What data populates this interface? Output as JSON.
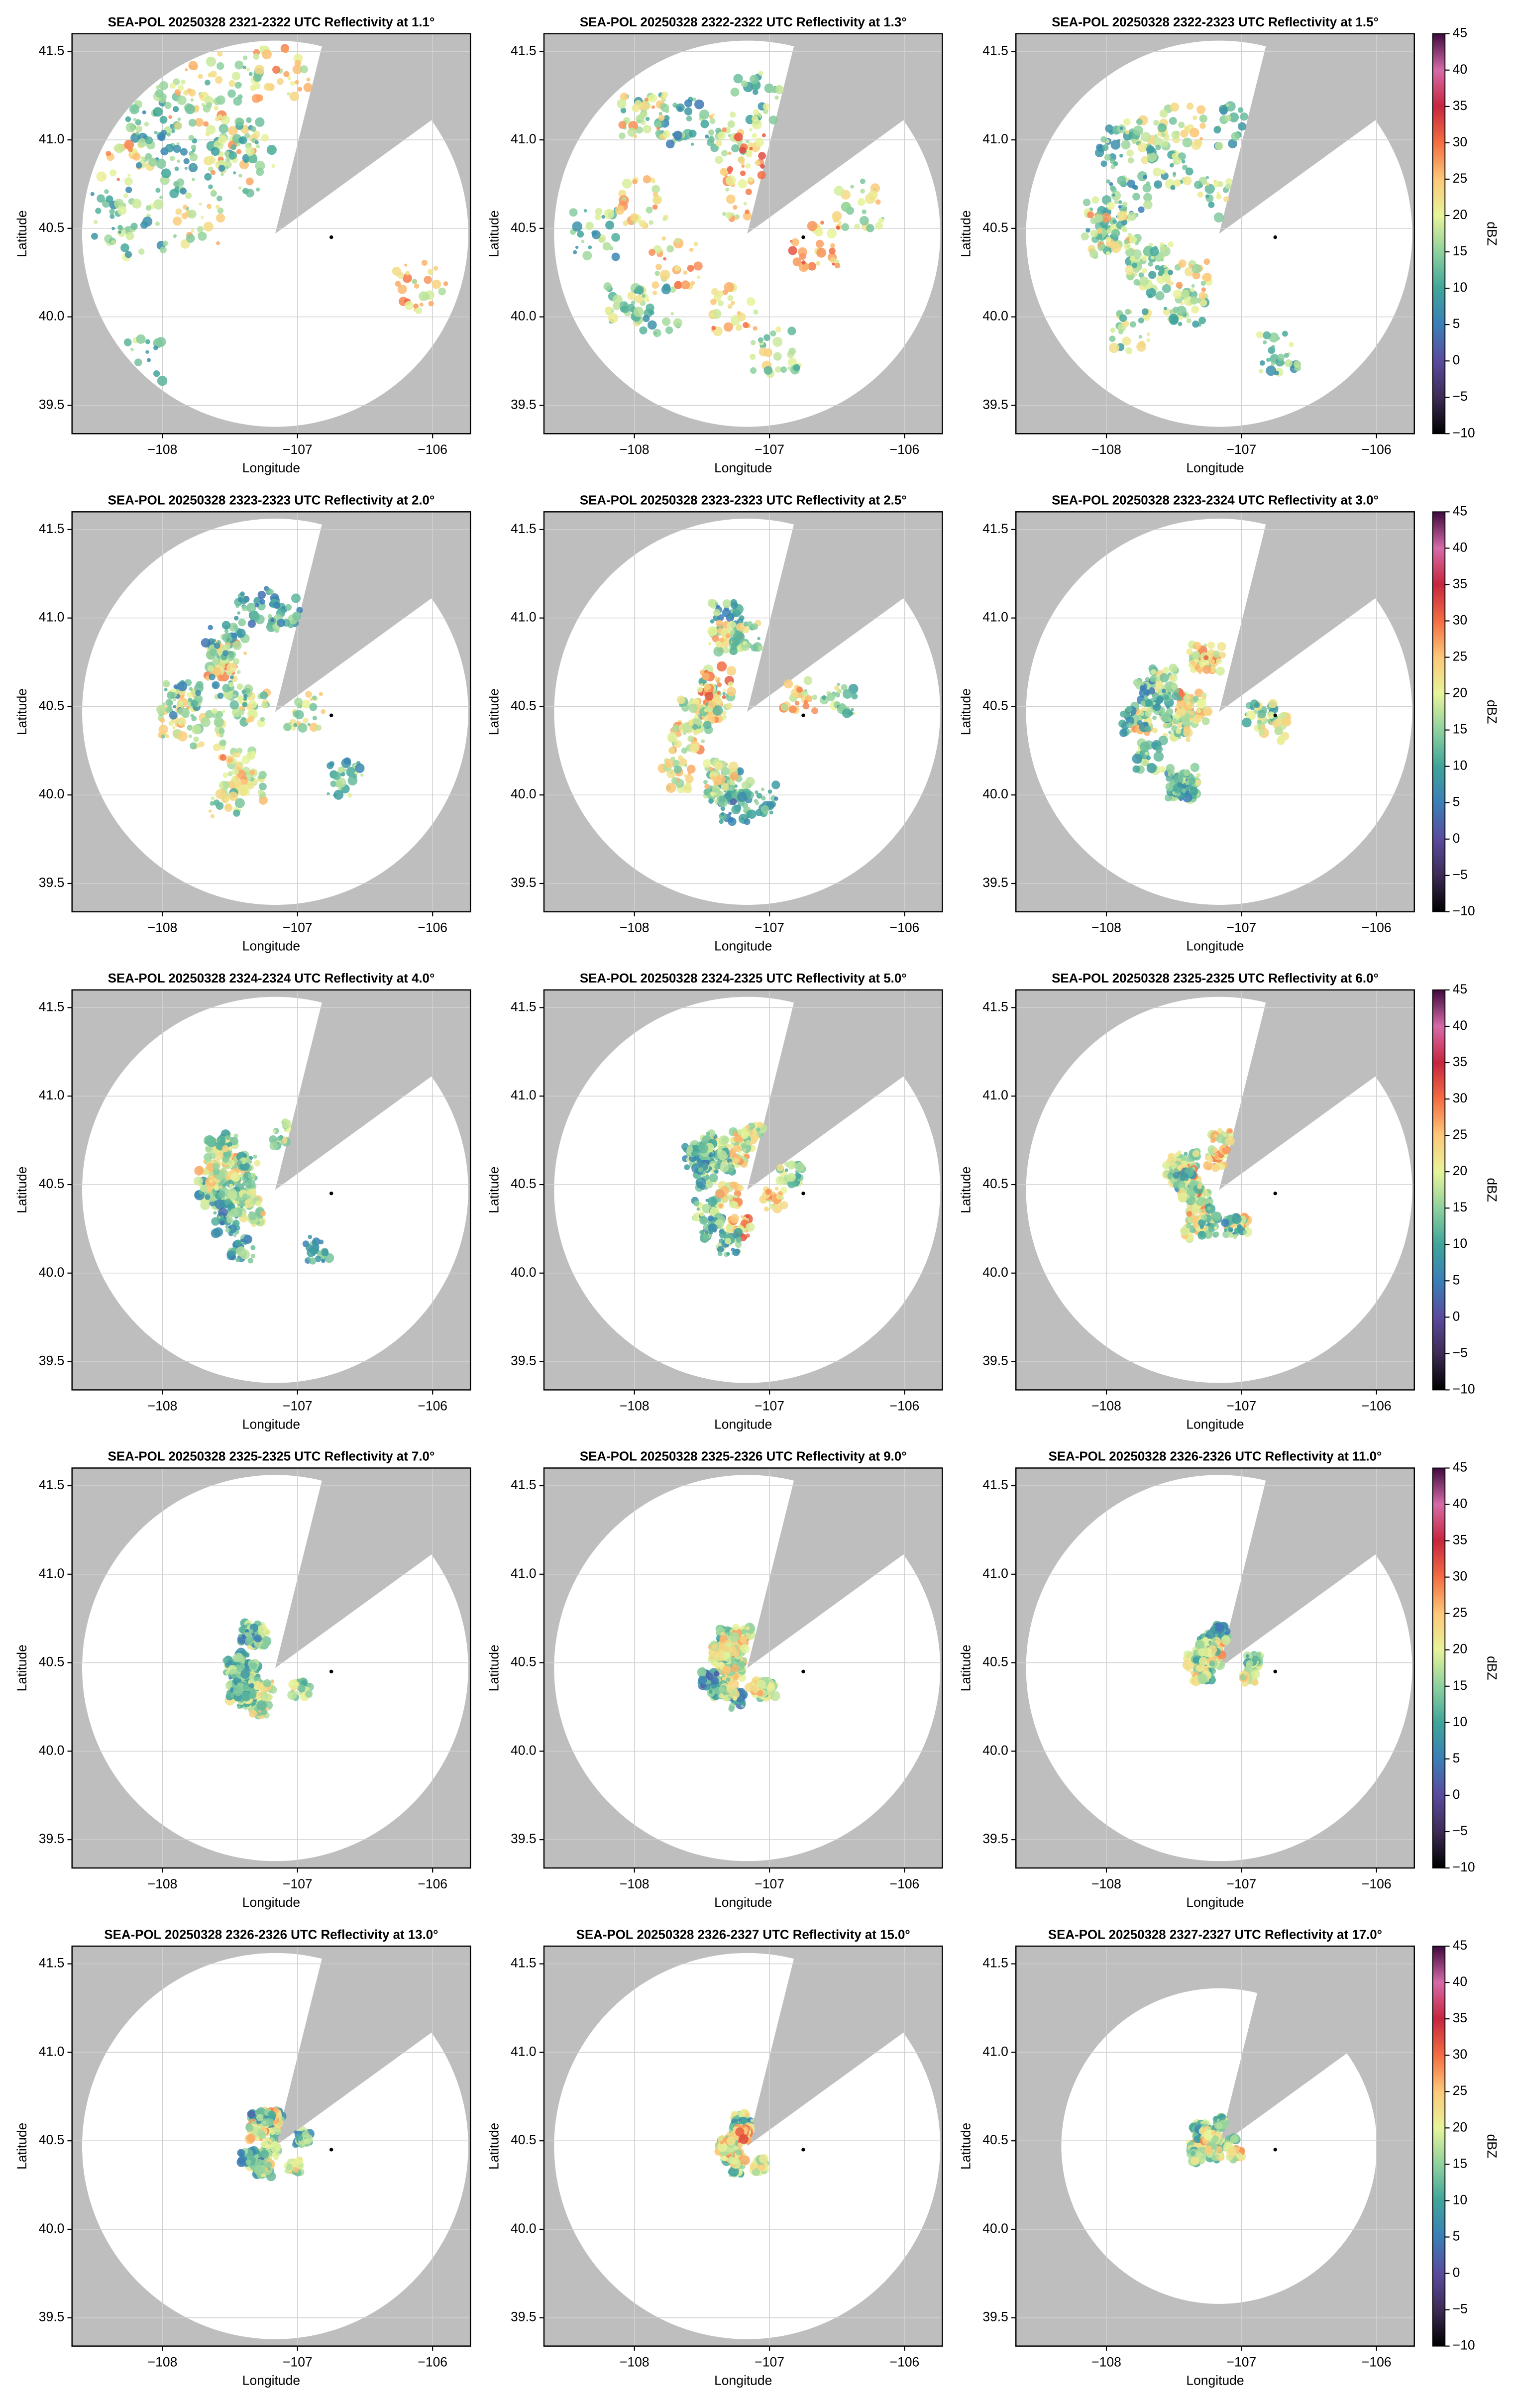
{
  "chart_data": [
    {
      "type": "map",
      "title": "SEA-POL 20250328 2321-2322 UTC Reflectivity at 1.1°",
      "xlabel": "Longitude",
      "ylabel": "Latitude",
      "xlim": [
        -108.67,
        -105.72
      ],
      "ylim": [
        39.34,
        41.6
      ],
      "xticks": [
        {
          "value": -108,
          "label": "−108"
        },
        {
          "value": -107,
          "label": "−107"
        },
        {
          "value": -106,
          "label": "−106"
        }
      ],
      "yticks": [
        39.5,
        {
          "value": 40,
          "label": "40.0"
        },
        40.5,
        {
          "value": 41,
          "label": "41.0"
        },
        41.5
      ],
      "marker": {
        "x": -106.75,
        "y": 40.45
      }
    },
    {
      "type": "map",
      "title": "SEA-POL 20250328 2322-2322 UTC Reflectivity at 1.3°",
      "xlabel": "Longitude",
      "ylabel": "Latitude",
      "xlim": [
        -108.67,
        -105.72
      ],
      "ylim": [
        39.34,
        41.6
      ],
      "xticks": [
        {
          "value": -108,
          "label": "−108"
        },
        {
          "value": -107,
          "label": "−107"
        },
        {
          "value": -106,
          "label": "−106"
        }
      ],
      "yticks": [
        39.5,
        {
          "value": 40,
          "label": "40.0"
        },
        40.5,
        {
          "value": 41,
          "label": "41.0"
        },
        41.5
      ],
      "marker": {
        "x": -106.75,
        "y": 40.45
      }
    },
    {
      "type": "map",
      "title": "SEA-POL 20250328 2322-2323 UTC Reflectivity at 1.5°",
      "xlabel": "Longitude",
      "ylabel": "Latitude",
      "xlim": [
        -108.67,
        -105.72
      ],
      "ylim": [
        39.34,
        41.6
      ],
      "xticks": [
        {
          "value": -108,
          "label": "−108"
        },
        {
          "value": -107,
          "label": "−107"
        },
        {
          "value": -106,
          "label": "−106"
        }
      ],
      "yticks": [
        39.5,
        {
          "value": 40,
          "label": "40.0"
        },
        40.5,
        {
          "value": 41,
          "label": "41.0"
        },
        41.5
      ],
      "marker": {
        "x": -106.75,
        "y": 40.45
      }
    },
    {
      "type": "map",
      "title": "SEA-POL 20250328 2323-2323 UTC Reflectivity at 2.0°",
      "xlabel": "Longitude",
      "ylabel": "Latitude",
      "xlim": [
        -108.67,
        -105.72
      ],
      "ylim": [
        39.34,
        41.6
      ],
      "xticks": [
        {
          "value": -108,
          "label": "−108"
        },
        {
          "value": -107,
          "label": "−107"
        },
        {
          "value": -106,
          "label": "−106"
        }
      ],
      "yticks": [
        39.5,
        {
          "value": 40,
          "label": "40.0"
        },
        40.5,
        {
          "value": 41,
          "label": "41.0"
        },
        41.5
      ],
      "marker": {
        "x": -106.75,
        "y": 40.45
      }
    },
    {
      "type": "map",
      "title": "SEA-POL 20250328 2323-2323 UTC Reflectivity at 2.5°",
      "xlabel": "Longitude",
      "ylabel": "Latitude",
      "xlim": [
        -108.67,
        -105.72
      ],
      "ylim": [
        39.34,
        41.6
      ],
      "xticks": [
        {
          "value": -108,
          "label": "−108"
        },
        {
          "value": -107,
          "label": "−107"
        },
        {
          "value": -106,
          "label": "−106"
        }
      ],
      "yticks": [
        39.5,
        {
          "value": 40,
          "label": "40.0"
        },
        40.5,
        {
          "value": 41,
          "label": "41.0"
        },
        41.5
      ],
      "marker": {
        "x": -106.75,
        "y": 40.45
      }
    },
    {
      "type": "map",
      "title": "SEA-POL 20250328 2323-2324 UTC Reflectivity at 3.0°",
      "xlabel": "Longitude",
      "ylabel": "Latitude",
      "xlim": [
        -108.67,
        -105.72
      ],
      "ylim": [
        39.34,
        41.6
      ],
      "xticks": [
        {
          "value": -108,
          "label": "−108"
        },
        {
          "value": -107,
          "label": "−107"
        },
        {
          "value": -106,
          "label": "−106"
        }
      ],
      "yticks": [
        39.5,
        {
          "value": 40,
          "label": "40.0"
        },
        40.5,
        {
          "value": 41,
          "label": "41.0"
        },
        41.5
      ],
      "marker": {
        "x": -106.75,
        "y": 40.45
      }
    },
    {
      "type": "map",
      "title": "SEA-POL 20250328 2324-2324 UTC Reflectivity at 4.0°",
      "xlabel": "Longitude",
      "ylabel": "Latitude",
      "xlim": [
        -108.67,
        -105.72
      ],
      "ylim": [
        39.34,
        41.6
      ],
      "xticks": [
        {
          "value": -108,
          "label": "−108"
        },
        {
          "value": -107,
          "label": "−107"
        },
        {
          "value": -106,
          "label": "−106"
        }
      ],
      "yticks": [
        39.5,
        {
          "value": 40,
          "label": "40.0"
        },
        40.5,
        {
          "value": 41,
          "label": "41.0"
        },
        41.5
      ],
      "marker": {
        "x": -106.75,
        "y": 40.45
      }
    },
    {
      "type": "map",
      "title": "SEA-POL 20250328 2324-2325 UTC Reflectivity at 5.0°",
      "xlabel": "Longitude",
      "ylabel": "Latitude",
      "xlim": [
        -108.67,
        -105.72
      ],
      "ylim": [
        39.34,
        41.6
      ],
      "xticks": [
        {
          "value": -108,
          "label": "−108"
        },
        {
          "value": -107,
          "label": "−107"
        },
        {
          "value": -106,
          "label": "−106"
        }
      ],
      "yticks": [
        39.5,
        {
          "value": 40,
          "label": "40.0"
        },
        40.5,
        {
          "value": 41,
          "label": "41.0"
        },
        41.5
      ],
      "marker": {
        "x": -106.75,
        "y": 40.45
      }
    },
    {
      "type": "map",
      "title": "SEA-POL 20250328 2325-2325 UTC Reflectivity at 6.0°",
      "xlabel": "Longitude",
      "ylabel": "Latitude",
      "xlim": [
        -108.67,
        -105.72
      ],
      "ylim": [
        39.34,
        41.6
      ],
      "xticks": [
        {
          "value": -108,
          "label": "−108"
        },
        {
          "value": -107,
          "label": "−107"
        },
        {
          "value": -106,
          "label": "−106"
        }
      ],
      "yticks": [
        39.5,
        {
          "value": 40,
          "label": "40.0"
        },
        40.5,
        {
          "value": 41,
          "label": "41.0"
        },
        41.5
      ],
      "marker": {
        "x": -106.75,
        "y": 40.45
      }
    },
    {
      "type": "map",
      "title": "SEA-POL 20250328 2325-2325 UTC Reflectivity at 7.0°",
      "xlabel": "Longitude",
      "ylabel": "Latitude",
      "xlim": [
        -108.67,
        -105.72
      ],
      "ylim": [
        39.34,
        41.6
      ],
      "xticks": [
        {
          "value": -108,
          "label": "−108"
        },
        {
          "value": -107,
          "label": "−107"
        },
        {
          "value": -106,
          "label": "−106"
        }
      ],
      "yticks": [
        39.5,
        {
          "value": 40,
          "label": "40.0"
        },
        40.5,
        {
          "value": 41,
          "label": "41.0"
        },
        41.5
      ],
      "marker": {
        "x": -106.75,
        "y": 40.45
      }
    },
    {
      "type": "map",
      "title": "SEA-POL 20250328 2325-2326 UTC Reflectivity at 9.0°",
      "xlabel": "Longitude",
      "ylabel": "Latitude",
      "xlim": [
        -108.67,
        -105.72
      ],
      "ylim": [
        39.34,
        41.6
      ],
      "xticks": [
        {
          "value": -108,
          "label": "−108"
        },
        {
          "value": -107,
          "label": "−107"
        },
        {
          "value": -106,
          "label": "−106"
        }
      ],
      "yticks": [
        39.5,
        {
          "value": 40,
          "label": "40.0"
        },
        40.5,
        {
          "value": 41,
          "label": "41.0"
        },
        41.5
      ],
      "marker": {
        "x": -106.75,
        "y": 40.45
      }
    },
    {
      "type": "map",
      "title": "SEA-POL 20250328 2326-2326 UTC Reflectivity at 11.0°",
      "xlabel": "Longitude",
      "ylabel": "Latitude",
      "xlim": [
        -108.67,
        -105.72
      ],
      "ylim": [
        39.34,
        41.6
      ],
      "xticks": [
        {
          "value": -108,
          "label": "−108"
        },
        {
          "value": -107,
          "label": "−107"
        },
        {
          "value": -106,
          "label": "−106"
        }
      ],
      "yticks": [
        39.5,
        {
          "value": 40,
          "label": "40.0"
        },
        40.5,
        {
          "value": 41,
          "label": "41.0"
        },
        41.5
      ],
      "marker": {
        "x": -106.75,
        "y": 40.45
      }
    },
    {
      "type": "map",
      "title": "SEA-POL 20250328 2326-2326 UTC Reflectivity at 13.0°",
      "xlabel": "Longitude",
      "ylabel": "Latitude",
      "xlim": [
        -108.67,
        -105.72
      ],
      "ylim": [
        39.34,
        41.6
      ],
      "xticks": [
        {
          "value": -108,
          "label": "−108"
        },
        {
          "value": -107,
          "label": "−107"
        },
        {
          "value": -106,
          "label": "−106"
        }
      ],
      "yticks": [
        39.5,
        {
          "value": 40,
          "label": "40.0"
        },
        40.5,
        {
          "value": 41,
          "label": "41.0"
        },
        41.5
      ],
      "marker": {
        "x": -106.75,
        "y": 40.45
      }
    },
    {
      "type": "map",
      "title": "SEA-POL 20250328 2326-2327 UTC Reflectivity at 15.0°",
      "xlabel": "Longitude",
      "ylabel": "Latitude",
      "xlim": [
        -108.67,
        -105.72
      ],
      "ylim": [
        39.34,
        41.6
      ],
      "xticks": [
        {
          "value": -108,
          "label": "−108"
        },
        {
          "value": -107,
          "label": "−107"
        },
        {
          "value": -106,
          "label": "−106"
        }
      ],
      "yticks": [
        39.5,
        {
          "value": 40,
          "label": "40.0"
        },
        40.5,
        {
          "value": 41,
          "label": "41.0"
        },
        41.5
      ],
      "marker": {
        "x": -106.75,
        "y": 40.45
      }
    },
    {
      "type": "map",
      "title": "SEA-POL 20250328 2327-2327 UTC Reflectivity at 17.0°",
      "xlabel": "Longitude",
      "ylabel": "Latitude",
      "xlim": [
        -108.67,
        -105.72
      ],
      "ylim": [
        39.34,
        41.6
      ],
      "xticks": [
        {
          "value": -108,
          "label": "−108"
        },
        {
          "value": -107,
          "label": "−107"
        },
        {
          "value": -106,
          "label": "−106"
        }
      ],
      "yticks": [
        39.5,
        {
          "value": 40,
          "label": "40.0"
        },
        40.5,
        {
          "value": 41,
          "label": "41.0"
        },
        41.5
      ],
      "marker": {
        "x": -106.75,
        "y": 40.45
      }
    }
  ],
  "colorbar": {
    "label": "dBZ",
    "lim": [
      -10,
      45
    ],
    "ticks": [
      {
        "value": -10,
        "label": "−10"
      },
      {
        "value": -5,
        "label": "−5"
      },
      0,
      5,
      10,
      15,
      20,
      25,
      30,
      35,
      40,
      45
    ],
    "colors": [
      "#000000",
      "#3d2b56",
      "#5a4a9e",
      "#3a7fb8",
      "#3fa59a",
      "#8fd19e",
      "#e7f49a",
      "#fdc877",
      "#f46d43",
      "#c7263e",
      "#d66aa8",
      "#3f0a3f"
    ]
  }
}
